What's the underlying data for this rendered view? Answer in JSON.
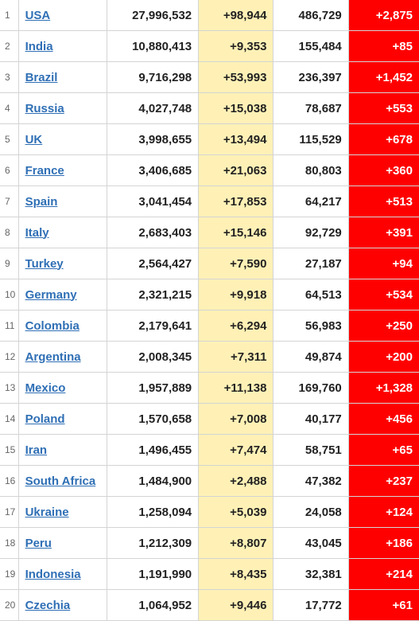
{
  "table": {
    "rows": [
      {
        "rank": "1",
        "country": "USA",
        "cases": "27,996,532",
        "new_cases": "+98,944",
        "deaths": "486,729",
        "new_deaths": "+2,875"
      },
      {
        "rank": "2",
        "country": "India",
        "cases": "10,880,413",
        "new_cases": "+9,353",
        "deaths": "155,484",
        "new_deaths": "+85"
      },
      {
        "rank": "3",
        "country": "Brazil",
        "cases": "9,716,298",
        "new_cases": "+53,993",
        "deaths": "236,397",
        "new_deaths": "+1,452"
      },
      {
        "rank": "4",
        "country": "Russia",
        "cases": "4,027,748",
        "new_cases": "+15,038",
        "deaths": "78,687",
        "new_deaths": "+553"
      },
      {
        "rank": "5",
        "country": "UK",
        "cases": "3,998,655",
        "new_cases": "+13,494",
        "deaths": "115,529",
        "new_deaths": "+678"
      },
      {
        "rank": "6",
        "country": "France",
        "cases": "3,406,685",
        "new_cases": "+21,063",
        "deaths": "80,803",
        "new_deaths": "+360"
      },
      {
        "rank": "7",
        "country": "Spain",
        "cases": "3,041,454",
        "new_cases": "+17,853",
        "deaths": "64,217",
        "new_deaths": "+513"
      },
      {
        "rank": "8",
        "country": "Italy",
        "cases": "2,683,403",
        "new_cases": "+15,146",
        "deaths": "92,729",
        "new_deaths": "+391"
      },
      {
        "rank": "9",
        "country": "Turkey",
        "cases": "2,564,427",
        "new_cases": "+7,590",
        "deaths": "27,187",
        "new_deaths": "+94"
      },
      {
        "rank": "10",
        "country": "Germany",
        "cases": "2,321,215",
        "new_cases": "+9,918",
        "deaths": "64,513",
        "new_deaths": "+534"
      },
      {
        "rank": "11",
        "country": "Colombia",
        "cases": "2,179,641",
        "new_cases": "+6,294",
        "deaths": "56,983",
        "new_deaths": "+250"
      },
      {
        "rank": "12",
        "country": "Argentina",
        "cases": "2,008,345",
        "new_cases": "+7,311",
        "deaths": "49,874",
        "new_deaths": "+200"
      },
      {
        "rank": "13",
        "country": "Mexico",
        "cases": "1,957,889",
        "new_cases": "+11,138",
        "deaths": "169,760",
        "new_deaths": "+1,328"
      },
      {
        "rank": "14",
        "country": "Poland",
        "cases": "1,570,658",
        "new_cases": "+7,008",
        "deaths": "40,177",
        "new_deaths": "+456"
      },
      {
        "rank": "15",
        "country": "Iran",
        "cases": "1,496,455",
        "new_cases": "+7,474",
        "deaths": "58,751",
        "new_deaths": "+65"
      },
      {
        "rank": "16",
        "country": "South Africa",
        "cases": "1,484,900",
        "new_cases": "+2,488",
        "deaths": "47,382",
        "new_deaths": "+237"
      },
      {
        "rank": "17",
        "country": "Ukraine",
        "cases": "1,258,094",
        "new_cases": "+5,039",
        "deaths": "24,058",
        "new_deaths": "+124"
      },
      {
        "rank": "18",
        "country": "Peru",
        "cases": "1,212,309",
        "new_cases": "+8,807",
        "deaths": "43,045",
        "new_deaths": "+186"
      },
      {
        "rank": "19",
        "country": "Indonesia",
        "cases": "1,191,990",
        "new_cases": "+8,435",
        "deaths": "32,381",
        "new_deaths": "+214"
      },
      {
        "rank": "20",
        "country": "Czechia",
        "cases": "1,064,952",
        "new_cases": "+9,446",
        "deaths": "17,772",
        "new_deaths": "+61"
      }
    ]
  },
  "colors": {
    "link": "#2f6fb5",
    "new_cases_bg": "#fff1b6",
    "new_deaths_bg": "#ff0000",
    "grid": "#d4d4d4"
  }
}
